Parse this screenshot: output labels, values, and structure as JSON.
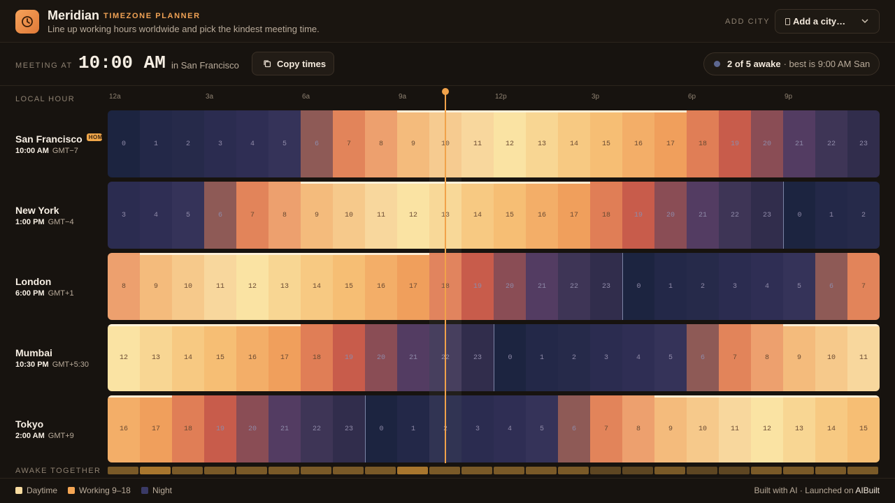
{
  "header": {
    "brand": "Meridian",
    "tag": "TIMEZONE PLANNER",
    "subtitle": "Line up working hours worldwide and pick the kindest meeting time.",
    "add_label": "ADD CITY",
    "add_select": "Add a city…",
    "logo_icon": "clock-icon"
  },
  "meeting": {
    "label": "MEETING AT",
    "time": "10:00 AM",
    "in_text": "in San Francisco",
    "copy_label": "Copy times",
    "awake_count": "2 of 5 awake",
    "best_text": "· best is 9:00 AM San"
  },
  "axis": {
    "label": "LOCAL HOUR",
    "ticks": [
      "12a",
      "3a",
      "6a",
      "9a",
      "12p",
      "3p",
      "6p",
      "9p"
    ]
  },
  "cities": [
    {
      "name": "San Francisco",
      "badge": "HOME",
      "time": "10:00 AM",
      "gmt": "GMT−7",
      "offset": -7,
      "start": 0
    },
    {
      "name": "New York",
      "badge": "",
      "time": "1:00 PM",
      "gmt": "GMT−4",
      "offset": -4,
      "start": 3
    },
    {
      "name": "London",
      "badge": "",
      "time": "6:00 PM",
      "gmt": "GMT+1",
      "offset": 1,
      "start": 8
    },
    {
      "name": "Mumbai",
      "badge": "",
      "time": "10:30 PM",
      "gmt": "GMT+5:30",
      "offset": 5.5,
      "start": 12
    },
    {
      "name": "Tokyo",
      "badge": "",
      "time": "2:00 AM",
      "gmt": "GMT+9",
      "offset": 9,
      "start": 16
    }
  ],
  "selected_hour": 10,
  "awake_together": {
    "label": "AWAKE TOGETHER",
    "levels": [
      2,
      3,
      2,
      2,
      2,
      2,
      2,
      2,
      2,
      3,
      2,
      2,
      2,
      2,
      2,
      1,
      1,
      2,
      1,
      1,
      2,
      2,
      2,
      2
    ]
  },
  "colors": {
    "night": "#262a4a",
    "work": "#f5b46c",
    "daytime": "#f9dca0",
    "accent": "#f0a24a"
  },
  "legend": [
    {
      "label": "Daytime",
      "color": "#f9dca0"
    },
    {
      "label": "Working 9–18",
      "color": "#f5a654"
    },
    {
      "label": "Night",
      "color": "#3a3a66"
    }
  ],
  "footer": {
    "built": "Built with AI · Launched on",
    "brand": "AIBuilt"
  }
}
